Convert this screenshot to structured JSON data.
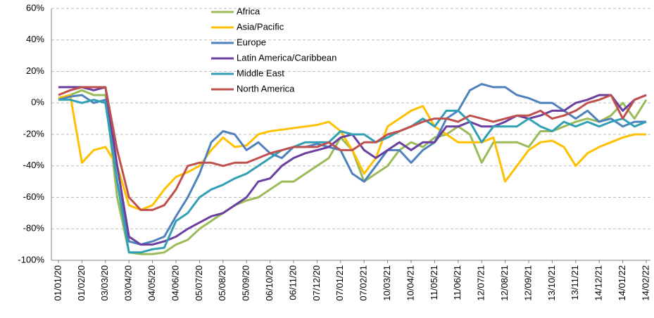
{
  "chart_data": {
    "type": "line",
    "categories": [
      "01/01/20",
      null,
      "01/02/20",
      null,
      "03/03/20",
      null,
      "03/04/20",
      null,
      "04/05/20",
      null,
      "04/06/20",
      null,
      "05/07/20",
      null,
      "05/08/20",
      null,
      "05/09/20",
      null,
      "06/10/20",
      null,
      "06/11/20",
      null,
      "07/12/20",
      null,
      "07/01/21",
      null,
      "07/02/21",
      null,
      "10/03/21",
      null,
      "10/04/21",
      null,
      "11/05/21",
      null,
      "11/06/21",
      null,
      "12/07/21",
      null,
      "12/08/21",
      null,
      "12/09/21",
      null,
      "13/10/21",
      null,
      "13/11/21",
      null,
      "14/12/21",
      null,
      "14/01/22",
      null,
      "14/02/22"
    ],
    "series": [
      {
        "name": "Africa",
        "color": "#9bbb59",
        "values": [
          3,
          5,
          8,
          5,
          5,
          -60,
          -95,
          -96,
          -96,
          -95,
          -90,
          -87,
          -80,
          -75,
          -70,
          -65,
          -62,
          -60,
          -55,
          -50,
          -50,
          -45,
          -40,
          -35,
          -22,
          -30,
          -50,
          -45,
          -40,
          -30,
          -25,
          -28,
          -22,
          -20,
          -15,
          -20,
          -38,
          -25,
          -25,
          -25,
          -28,
          -18,
          -18,
          -15,
          -12,
          -10,
          -12,
          -8,
          0,
          -10,
          2
        ]
      },
      {
        "name": "Asia/Pacific",
        "color": "#ffc000",
        "values": [
          3,
          5,
          -38,
          -30,
          -28,
          -40,
          -65,
          -68,
          -65,
          -55,
          -47,
          -44,
          -40,
          -30,
          -22,
          -28,
          -27,
          -20,
          -18,
          -17,
          -16,
          -15,
          -14,
          -12,
          -18,
          -30,
          -45,
          -35,
          -15,
          -10,
          -5,
          -2,
          -15,
          -20,
          -25,
          -25,
          -25,
          -22,
          -50,
          -40,
          -30,
          -25,
          -24,
          -28,
          -40,
          -32,
          -28,
          -25,
          -22,
          -20,
          -20
        ]
      },
      {
        "name": "Europe",
        "color": "#4f81bd",
        "values": [
          2,
          4,
          5,
          0,
          2,
          -50,
          -88,
          -90,
          -88,
          -85,
          -72,
          -60,
          -45,
          -25,
          -18,
          -20,
          -30,
          -25,
          -32,
          -35,
          -28,
          -28,
          -26,
          -28,
          -30,
          -45,
          -50,
          -40,
          -30,
          -30,
          -38,
          -30,
          -25,
          -10,
          -5,
          8,
          12,
          10,
          10,
          5,
          3,
          0,
          0,
          -5,
          -10,
          -5,
          -12,
          -10,
          -15,
          -12,
          -12
        ]
      },
      {
        "name": "Latin America/Caribbean",
        "color": "#6b3fa0",
        "values": [
          10,
          10,
          10,
          8,
          10,
          -40,
          -85,
          -90,
          -90,
          -88,
          -85,
          -80,
          -76,
          -72,
          -70,
          -65,
          -60,
          -50,
          -48,
          -40,
          -35,
          -32,
          -30,
          -28,
          -22,
          -20,
          -30,
          -35,
          -30,
          -25,
          -30,
          -25,
          -25,
          -15,
          -15,
          -12,
          -15,
          -15,
          -12,
          -8,
          -10,
          -8,
          -5,
          -5,
          0,
          2,
          5,
          5,
          -5,
          2,
          5
        ]
      },
      {
        "name": "Middle East",
        "color": "#31a0b5",
        "values": [
          2,
          2,
          0,
          2,
          0,
          -50,
          -95,
          -95,
          -93,
          -92,
          -75,
          -70,
          -60,
          -55,
          -52,
          -48,
          -45,
          -40,
          -35,
          -30,
          -28,
          -25,
          -25,
          -25,
          -18,
          -20,
          -20,
          -25,
          -22,
          -18,
          -15,
          -10,
          -15,
          -5,
          -5,
          -12,
          -25,
          -15,
          -15,
          -15,
          -10,
          -15,
          -18,
          -12,
          -15,
          -12,
          -15,
          -12,
          -10,
          -15,
          -12
        ]
      },
      {
        "name": "North America",
        "color": "#c0504d",
        "values": [
          5,
          8,
          10,
          10,
          10,
          -30,
          -60,
          -68,
          -68,
          -65,
          -55,
          -40,
          -38,
          -38,
          -40,
          -38,
          -38,
          -35,
          -32,
          -30,
          -28,
          -28,
          -28,
          -25,
          -30,
          -30,
          -25,
          -25,
          -20,
          -18,
          -15,
          -12,
          -10,
          -10,
          -12,
          -8,
          -10,
          -12,
          -10,
          -8,
          -8,
          -5,
          -10,
          -8,
          -5,
          0,
          2,
          5,
          -10,
          2,
          5
        ]
      }
    ],
    "ylim": [
      -100,
      60
    ],
    "yticks": [
      {
        "value": -100,
        "label": "-100%"
      },
      {
        "value": -80,
        "label": "-80%"
      },
      {
        "value": -60,
        "label": "-60%"
      },
      {
        "value": -40,
        "label": "-40%"
      },
      {
        "value": -20,
        "label": "-20%"
      },
      {
        "value": 0,
        "label": "0%"
      },
      {
        "value": 20,
        "label": "20%"
      },
      {
        "value": 40,
        "label": "40%"
      },
      {
        "value": 60,
        "label": "60%"
      }
    ],
    "grid": true,
    "legend": "top"
  }
}
